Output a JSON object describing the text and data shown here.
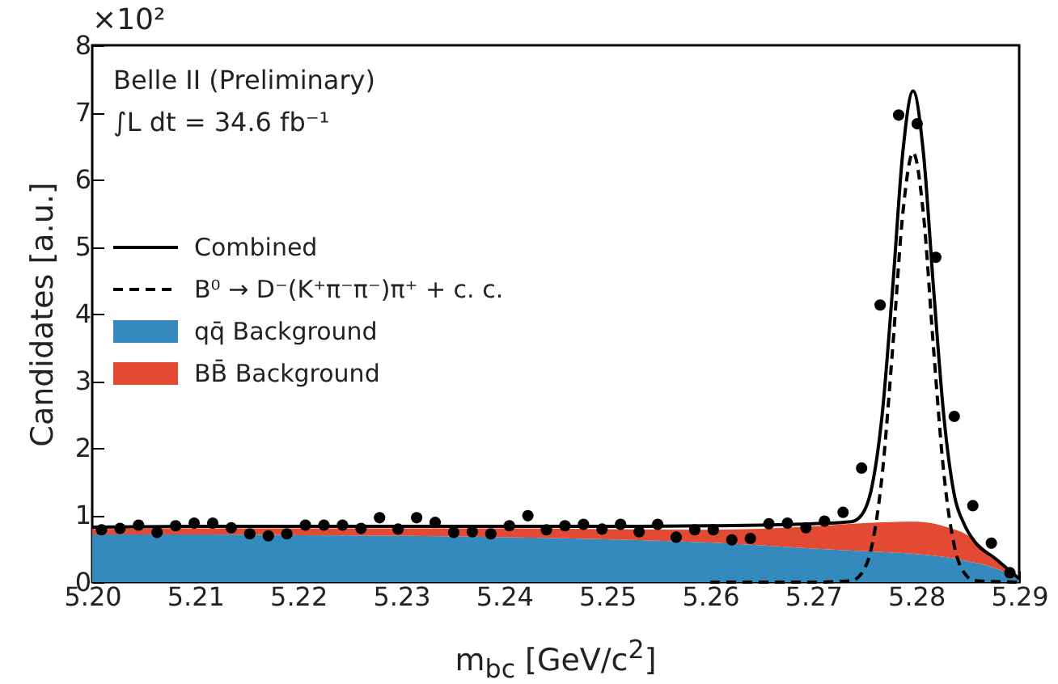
{
  "chart_data": {
    "type": "line",
    "xlabel": "m$_{bc}$ [GeV/c$^{2}$]",
    "ylabel": "Candidates [a.u.]",
    "annotations": [
      "×10²",
      "Belle II (Preliminary)",
      "∫L dt = 34.6 fb⁻¹"
    ],
    "xlim": [
      5.2,
      5.29
    ],
    "xticks": [
      {
        "value": 5.2,
        "label": "5.20"
      },
      5.21,
      5.22,
      5.23,
      5.24,
      5.25,
      5.26,
      5.27,
      5.28,
      5.29
    ],
    "ylim": [
      0,
      8
    ],
    "yticks": [
      0,
      1,
      2,
      3,
      4,
      5,
      6,
      7,
      8
    ],
    "grid": false,
    "legend": "left",
    "stacked": true,
    "series": [
      {
        "name": "qq̄ Background",
        "type": "area",
        "color": "#348abd",
        "x": [
          5.2,
          5.21,
          5.22,
          5.23,
          5.24,
          5.25,
          5.26,
          5.27,
          5.275,
          5.28,
          5.283,
          5.285,
          5.287,
          5.289,
          5.29
        ],
        "values": [
          0.71,
          0.71,
          0.7,
          0.69,
          0.67,
          0.64,
          0.59,
          0.5,
          0.46,
          0.42,
          0.37,
          0.31,
          0.24,
          0.12,
          0.03
        ]
      },
      {
        "name": "BB̄ Background",
        "type": "area",
        "color": "#e24a33",
        "x": [
          5.2,
          5.21,
          5.22,
          5.23,
          5.24,
          5.25,
          5.26,
          5.27,
          5.275,
          5.28,
          5.283,
          5.285,
          5.287,
          5.289,
          5.29
        ],
        "values": [
          0.08,
          0.09,
          0.1,
          0.11,
          0.13,
          0.15,
          0.19,
          0.33,
          0.42,
          0.48,
          0.45,
          0.39,
          0.21,
          0.06,
          0.0
        ]
      },
      {
        "type": "scatter",
        "marker": "circle",
        "color": "#000000",
        "x": [
          5.2009,
          5.2027,
          5.2045,
          5.2063,
          5.2081,
          5.2099,
          5.2117,
          5.2135,
          5.2153,
          5.2171,
          5.2189,
          5.2207,
          5.2225,
          5.2243,
          5.2261,
          5.2279,
          5.2297,
          5.2315,
          5.2333,
          5.2351,
          5.2369,
          5.2387,
          5.2405,
          5.2423,
          5.2441,
          5.2459,
          5.2477,
          5.2495,
          5.2513,
          5.2531,
          5.2549,
          5.2567,
          5.2585,
          5.2603,
          5.2621,
          5.2639,
          5.2657,
          5.2675,
          5.2693,
          5.2711,
          5.2729,
          5.2747,
          5.2765,
          5.2783,
          5.2801,
          5.2819,
          5.2837,
          5.2855,
          5.2873,
          5.2891
        ],
        "values": [
          0.78,
          0.8,
          0.85,
          0.74,
          0.84,
          0.88,
          0.88,
          0.81,
          0.72,
          0.69,
          0.72,
          0.85,
          0.85,
          0.85,
          0.8,
          0.96,
          0.79,
          0.96,
          0.89,
          0.74,
          0.75,
          0.72,
          0.84,
          0.99,
          0.78,
          0.84,
          0.86,
          0.79,
          0.86,
          0.75,
          0.86,
          0.67,
          0.78,
          0.78,
          0.63,
          0.65,
          0.87,
          0.88,
          0.81,
          0.91,
          1.04,
          1.7,
          4.13,
          6.96,
          6.83,
          4.84,
          2.47,
          1.14,
          0.58,
          0.14
        ]
      },
      {
        "name": "B⁰ → D⁻(K⁺π⁻π⁻)π⁺ + c. c.",
        "line_style": "dashed",
        "color": "#000000",
        "x": [
          5.26,
          5.27,
          5.2737,
          5.2747,
          5.2757,
          5.2767,
          5.2777,
          5.2787,
          5.2797,
          5.2807,
          5.2817,
          5.2827,
          5.2837,
          5.2847,
          5.2857,
          5.29
        ],
        "values": [
          0,
          0,
          0.02,
          0.13,
          0.54,
          1.6,
          3.45,
          5.49,
          6.4,
          5.49,
          3.45,
          1.6,
          0.54,
          0.13,
          0.02,
          0
        ]
      },
      {
        "name": "Combined",
        "line_style": "solid",
        "color": "#000000",
        "x": [
          5.2,
          5.21,
          5.22,
          5.23,
          5.24,
          5.25,
          5.26,
          5.265,
          5.27,
          5.2737,
          5.2747,
          5.2757,
          5.2767,
          5.2777,
          5.2787,
          5.2797,
          5.2807,
          5.2817,
          5.2827,
          5.2837,
          5.2847,
          5.2857,
          5.2877,
          5.29
        ],
        "values": [
          0.82,
          0.83,
          0.83,
          0.83,
          0.83,
          0.83,
          0.84,
          0.85,
          0.87,
          0.9,
          1.0,
          1.42,
          2.5,
          4.35,
          6.4,
          7.32,
          6.4,
          4.35,
          2.45,
          1.3,
          0.85,
          0.6,
          0.35,
          0.05
        ]
      }
    ]
  }
}
